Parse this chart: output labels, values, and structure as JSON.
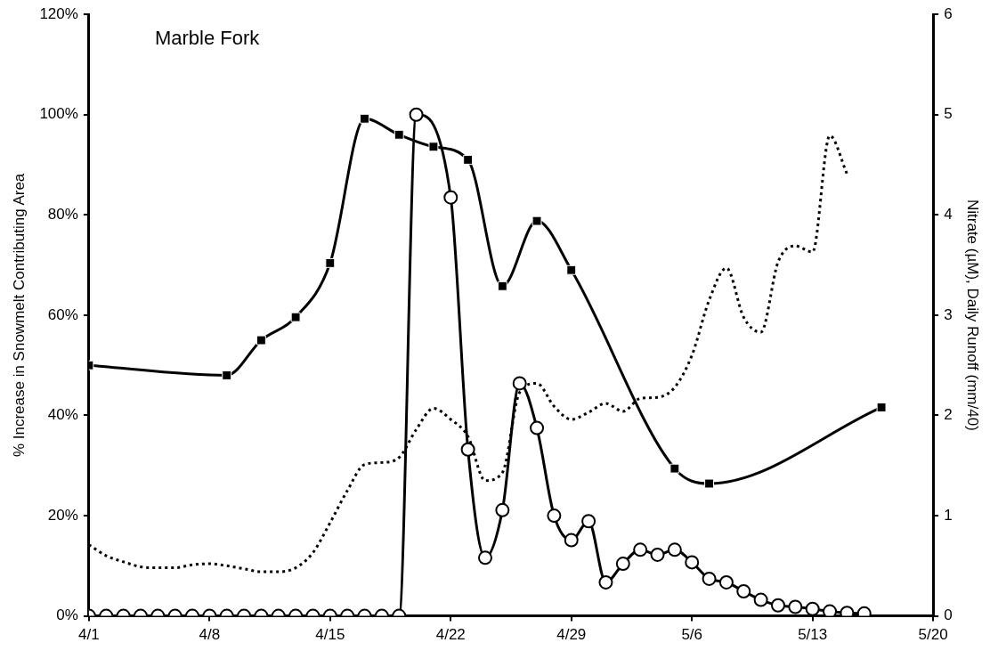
{
  "chart_data": {
    "type": "line",
    "title": "Marble Fork",
    "ylabel": "% Increase in Snowmelt Contributing Area",
    "y2label": "Nitrate (µM), Daily Runoff (mm/40)",
    "xlim": [
      "--04-01",
      "--05-20"
    ],
    "xticks": [
      {
        "value": "--04-01",
        "label": "4/1"
      },
      {
        "value": "--04-08",
        "label": "4/8"
      },
      {
        "value": "--04-15",
        "label": "4/15"
      },
      {
        "value": "--04-22",
        "label": "4/22"
      },
      {
        "value": "--04-29",
        "label": "4/29"
      },
      {
        "value": "--05-06",
        "label": "5/6"
      },
      {
        "value": "--05-13",
        "label": "5/13"
      },
      {
        "value": "--05-20",
        "label": "5/20"
      }
    ],
    "ylim": [
      0,
      120
    ],
    "yticks": [
      {
        "value": 0,
        "label": "0%"
      },
      {
        "value": 20,
        "label": "20%"
      },
      {
        "value": 40,
        "label": "40%"
      },
      {
        "value": 60,
        "label": "60%"
      },
      {
        "value": 80,
        "label": "80%"
      },
      {
        "value": 100,
        "label": "100%"
      },
      {
        "value": 120,
        "label": "120%"
      }
    ],
    "y2lim": [
      0,
      6
    ],
    "y2ticks": [
      0,
      1,
      2,
      3,
      4,
      5,
      6
    ],
    "grid": false,
    "legend": false,
    "series": [
      {
        "color": "#000000",
        "marker": "square",
        "line_style": "solid",
        "axis": "y2",
        "x": [
          "--04-01",
          "--04-09",
          "--04-11",
          "--04-13",
          "--04-15",
          "--04-17",
          "--04-19",
          "--04-21",
          "--04-23",
          "--04-25",
          "--04-27",
          "--04-29",
          "--05-05",
          "--05-07",
          "--05-17"
        ],
        "values": [
          2.5,
          2.4,
          2.75,
          2.98,
          3.52,
          4.96,
          4.8,
          4.68,
          4.55,
          3.29,
          3.94,
          3.45,
          1.47,
          1.32,
          2.08
        ]
      },
      {
        "color": "#000000",
        "marker": "circle",
        "line_style": "solid",
        "axis": "y",
        "x": [
          "--04-01",
          "--04-02",
          "--04-03",
          "--04-04",
          "--04-05",
          "--04-06",
          "--04-07",
          "--04-08",
          "--04-09",
          "--04-10",
          "--04-11",
          "--04-12",
          "--04-13",
          "--04-14",
          "--04-15",
          "--04-16",
          "--04-17",
          "--04-18",
          "--04-19",
          "--04-20",
          "--04-21",
          "--04-22",
          "--04-23",
          "--04-24",
          "--04-25",
          "--04-26",
          "--04-27",
          "--04-28",
          "--04-29",
          "--04-30",
          "--05-01",
          "--05-02",
          "--05-03",
          "--05-04",
          "--05-05",
          "--05-06",
          "--05-07",
          "--05-08",
          "--05-09",
          "--05-10",
          "--05-11",
          "--05-12",
          "--05-13",
          "--05-14",
          "--05-15",
          "--05-16"
        ],
        "values": [
          0,
          0,
          0,
          0,
          0,
          0,
          0,
          0,
          0,
          0,
          0,
          0,
          0,
          0,
          0,
          0,
          0,
          0,
          0,
          100,
          null,
          83.5,
          33.2,
          11.6,
          21.1,
          46.4,
          37.5,
          20,
          15.1,
          18.9,
          6.7,
          10.4,
          13.2,
          12.2,
          13.2,
          10.7,
          7.4,
          6.7,
          4.9,
          3.2,
          2.1,
          1.8,
          1.4,
          0.9,
          0.6,
          0.5
        ]
      },
      {
        "color": "#000000",
        "marker": "none",
        "line_style": "dotted",
        "axis": "y2",
        "x": [
          "--04-01",
          "--04-02",
          "--04-03",
          "--04-04",
          "--04-05",
          "--04-06",
          "--04-07",
          "--04-08",
          "--04-09",
          "--04-10",
          "--04-11",
          "--04-12",
          "--04-13",
          "--04-14",
          "--04-15",
          "--04-16",
          "--04-17",
          "--04-18",
          "--04-19",
          "--04-20",
          "--04-21",
          "--04-22",
          "--04-23",
          "--04-24",
          "--04-25",
          "--04-26",
          "--04-27",
          "--04-28",
          "--04-29",
          "--04-30",
          "--05-01",
          "--05-02",
          "--05-03",
          "--05-04",
          "--05-05",
          "--05-06",
          "--05-07",
          "--05-08",
          "--05-09",
          "--05-10",
          "--05-11",
          "--05-12",
          "--05-13",
          "--05-14",
          "--05-15"
        ],
        "values": [
          0.71,
          0.6,
          0.54,
          0.49,
          0.48,
          0.48,
          0.51,
          0.52,
          0.5,
          0.47,
          0.44,
          0.44,
          0.48,
          0.63,
          0.93,
          1.25,
          1.51,
          1.53,
          1.58,
          1.86,
          2.07,
          1.96,
          1.79,
          1.35,
          1.43,
          2.23,
          2.32,
          2.09,
          1.96,
          2.03,
          2.12,
          2.04,
          2.17,
          2.18,
          2.28,
          2.6,
          3.15,
          3.47,
          2.98,
          2.83,
          3.53,
          3.69,
          3.63,
          4.79,
          4.41
        ]
      }
    ]
  }
}
